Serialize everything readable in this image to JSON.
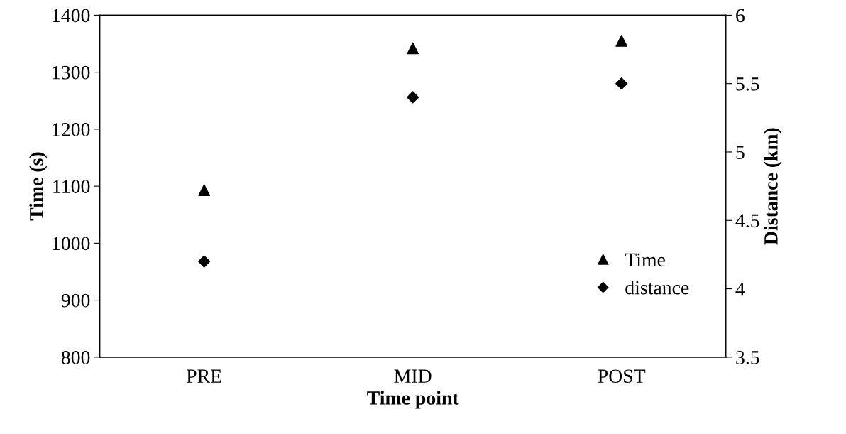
{
  "chart_data": {
    "type": "scatter",
    "xlabel": "Time point",
    "ylabel": "Time (s)",
    "y2label": "Distance (km)",
    "categories": [
      "PRE",
      "MID",
      "POST"
    ],
    "series": [
      {
        "name": "Time",
        "color": "#000000",
        "marker": "triangle",
        "values": [
          1093,
          1342,
          1355
        ]
      },
      {
        "name": "distance",
        "color": "#000000",
        "marker": "diamond",
        "axis": "y2",
        "values": [
          4.2,
          5.4,
          5.5
        ]
      }
    ],
    "ylim": [
      800,
      1400
    ],
    "yticks": [
      800,
      900,
      1000,
      1100,
      1200,
      1300,
      1400
    ],
    "y2lim": [
      3.5,
      6
    ],
    "y2ticks": [
      3.5,
      4,
      4.5,
      5,
      5.5,
      6
    ],
    "grid": false,
    "legend": "bottom right"
  }
}
